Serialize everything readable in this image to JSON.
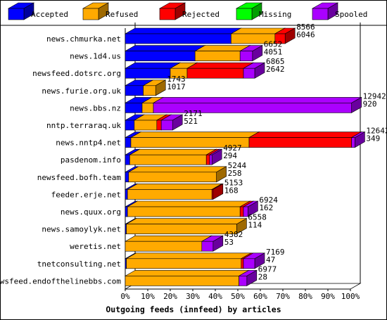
{
  "chart_data": {
    "type": "bar",
    "orientation": "horizontal",
    "stacked": true,
    "three_d": true,
    "title": "Outgoing feeds (innfeed) by articles",
    "xlabel": "Outgoing feeds (innfeed) by articles",
    "ylabel": "",
    "xlim": [
      0,
      100
    ],
    "x_unit": "%",
    "legend_position": "top",
    "x_ticks": [
      "0%",
      "10%",
      "20%",
      "30%",
      "40%",
      "50%",
      "60%",
      "70%",
      "80%",
      "90%",
      "100%"
    ],
    "series": [
      {
        "name": "Accepted",
        "color": "#0000ff"
      },
      {
        "name": "Refused",
        "color": "#ffaa00"
      },
      {
        "name": "Rejected",
        "color": "#ff0000"
      },
      {
        "name": "Missing",
        "color": "#00ff00"
      },
      {
        "name": "Spooled",
        "color": "#aa00ff"
      }
    ],
    "rows": [
      {
        "label": "news.chmurka.net",
        "offered": "8566",
        "accepted": "6046",
        "pct": [
          47,
          19.5,
          4.5,
          0,
          0
        ]
      },
      {
        "label": "news.1d4.us",
        "offered": "6652",
        "accepted": "4051",
        "pct": [
          31,
          20,
          0,
          0,
          5.5
        ]
      },
      {
        "label": "newsfeed.dotsrc.org",
        "offered": "6865",
        "accepted": "2642",
        "pct": [
          20,
          7.5,
          25,
          0,
          5
        ]
      },
      {
        "label": "news.furie.org.uk",
        "offered": "1743",
        "accepted": "1017",
        "pct": [
          8,
          5.5,
          0,
          0,
          0
        ]
      },
      {
        "label": "news.bbs.nz",
        "offered": "12942",
        "accepted": "920",
        "pct": [
          7.5,
          5,
          0,
          0,
          88
        ]
      },
      {
        "label": "nntp.terraraq.uk",
        "offered": "2171",
        "accepted": "521",
        "pct": [
          4,
          10,
          2,
          0,
          5
        ]
      },
      {
        "label": "news.nntp4.net",
        "offered": "12642",
        "accepted": "349",
        "pct": [
          2.5,
          52.5,
          45.5,
          0,
          1.5
        ]
      },
      {
        "label": "pasdenom.info",
        "offered": "4927",
        "accepted": "294",
        "pct": [
          2,
          34,
          1.5,
          0,
          1
        ]
      },
      {
        "label": "newsfeed.bofh.team",
        "offered": "5244",
        "accepted": "258",
        "pct": [
          1.5,
          39,
          0,
          0,
          0
        ]
      },
      {
        "label": "feeder.erje.net",
        "offered": "5153",
        "accepted": "168",
        "pct": [
          1,
          37.5,
          0.5,
          0,
          0
        ]
      },
      {
        "label": "news.quux.org",
        "offered": "6924",
        "accepted": "162",
        "pct": [
          1,
          50,
          1.5,
          0,
          2
        ]
      },
      {
        "label": "news.samoylyk.net",
        "offered": "6558",
        "accepted": "114",
        "pct": [
          0.5,
          49,
          0,
          0,
          0
        ]
      },
      {
        "label": "weretis.net",
        "offered": "4382",
        "accepted": "53",
        "pct": [
          0,
          34,
          0,
          0,
          5
        ]
      },
      {
        "label": "tnetconsulting.net",
        "offered": "7169",
        "accepted": "47",
        "pct": [
          0.5,
          51,
          1,
          0,
          5
        ]
      },
      {
        "label": "newsfeed.endofthelinebbs.com",
        "offered": "6977",
        "accepted": "28",
        "pct": [
          0,
          50.5,
          0,
          0,
          3.5
        ]
      }
    ]
  }
}
